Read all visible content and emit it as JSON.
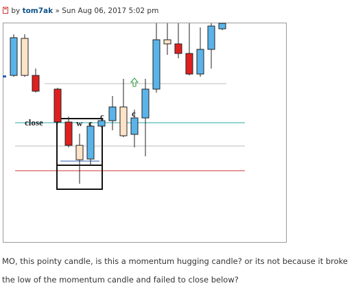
{
  "post": {
    "byline_prefix": "by",
    "author": "tom7ak",
    "date": "» Sun Aug 06, 2017 5:02 pm"
  },
  "image": {
    "labels": [
      "close",
      "w",
      "c",
      "c",
      "c"
    ]
  },
  "body": {
    "text": "MO, this pointy candle, is this a momentum hugging candle? or its not because it broke the low of the momentum candle and failed to close below?"
  }
}
